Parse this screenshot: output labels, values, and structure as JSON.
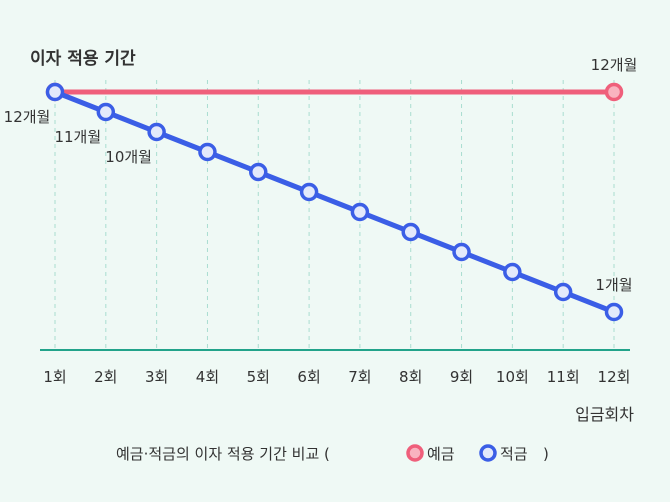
{
  "chart_data": {
    "type": "line",
    "title": "이자 적용 기간",
    "xlabel": "입금회차",
    "categories": [
      "1회",
      "2회",
      "3회",
      "4회",
      "5회",
      "6회",
      "7회",
      "8회",
      "9회",
      "10회",
      "11회",
      "12회"
    ],
    "series": [
      {
        "name": "예금",
        "values": [
          12,
          12,
          12,
          12,
          12,
          12,
          12,
          12,
          12,
          12,
          12,
          12
        ],
        "color": "#ef5f7b",
        "marker_fill": "#f9b3c0",
        "marked_points": [
          0,
          11
        ],
        "point_labels": {
          "11": "12개월"
        }
      },
      {
        "name": "적금",
        "values": [
          12,
          11,
          10,
          9,
          8,
          7,
          6,
          5,
          4,
          3,
          2,
          1
        ],
        "color": "#3b5ee6",
        "marker_fill": "#e3e9fb",
        "marked_points": [
          0,
          1,
          2,
          3,
          4,
          5,
          6,
          7,
          8,
          9,
          10,
          11
        ],
        "point_labels": {
          "0": "12개월",
          "1": "11개월",
          "2": "10개월",
          "11": "1개월"
        }
      }
    ],
    "legend": {
      "prefix": "예금·적금의 이자 적용 기간 비교 (",
      "suffix": ")",
      "placement": "bottom"
    },
    "axis_color": "#22a38a",
    "grid_color": "#a9ddd0",
    "grid": "vertical-dashed"
  }
}
